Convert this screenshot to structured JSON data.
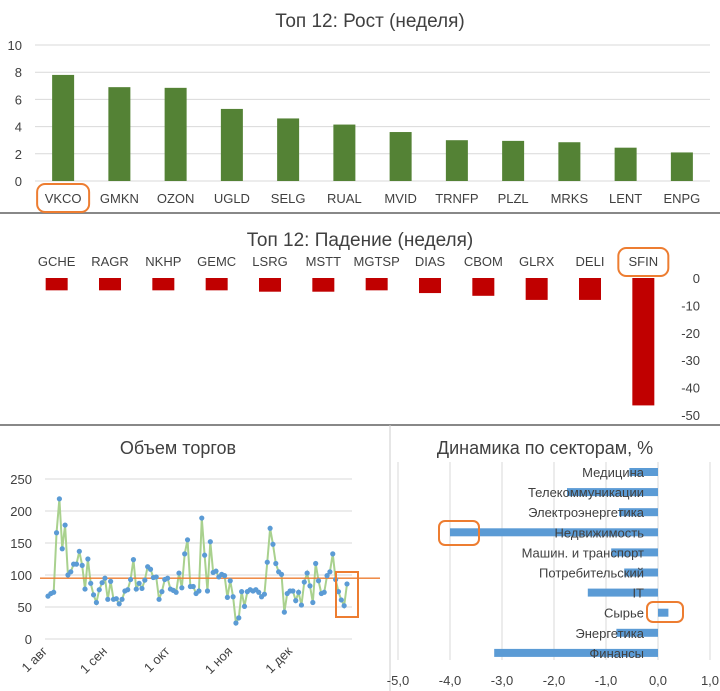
{
  "chart_data": [
    {
      "type": "bar",
      "title": "Топ 12: Рост (неделя)",
      "categories": [
        "VKCO",
        "GMKN",
        "OZON",
        "UGLD",
        "SELG",
        "RUAL",
        "MVID",
        "TRNFP",
        "PLZL",
        "MRKS",
        "LENT",
        "ENPG"
      ],
      "values": [
        7.8,
        6.9,
        6.85,
        5.3,
        4.6,
        4.15,
        3.6,
        3.0,
        2.95,
        2.85,
        2.45,
        2.1
      ],
      "ylim": [
        0,
        10
      ],
      "yticks": [
        0,
        2,
        4,
        6,
        8,
        10
      ],
      "highlight": "VKCO",
      "color": "#548235"
    },
    {
      "type": "bar",
      "title": "Топ 12: Падение (неделя)",
      "categories": [
        "GCHE",
        "RAGR",
        "NKHP",
        "GEMC",
        "LSRG",
        "MSTT",
        "MGTSP",
        "DIAS",
        "CBOM",
        "GLRX",
        "DELI",
        "SFIN"
      ],
      "values": [
        -4.5,
        -4.5,
        -4.5,
        -4.5,
        -5,
        -5,
        -4.5,
        -5.5,
        -6.5,
        -8,
        -8,
        -46.5
      ],
      "ylim": [
        -50,
        0
      ],
      "yticks": [
        0,
        -10,
        -20,
        -30,
        -40,
        -50
      ],
      "highlight": "SFIN",
      "color": "#c00000"
    },
    {
      "type": "line",
      "title": "Объем торгов",
      "xticks": [
        "1 авг",
        "1 сен",
        "1 окт",
        "1 ноя",
        "1 дек"
      ],
      "ylim": [
        0,
        250
      ],
      "yticks": [
        0,
        50,
        100,
        150,
        200,
        250
      ],
      "average": 95,
      "values": [
        67,
        71,
        73,
        166,
        219,
        141,
        178,
        100,
        105,
        117,
        117,
        137,
        115,
        78,
        125,
        87,
        69,
        57,
        77,
        88,
        95,
        62,
        90,
        62,
        63,
        55,
        62,
        75,
        77,
        93,
        124,
        78,
        87,
        79,
        92,
        113,
        109,
        96,
        97,
        62,
        74,
        93,
        95,
        78,
        76,
        73,
        103,
        80,
        133,
        155,
        82,
        82,
        71,
        75,
        189,
        131,
        75,
        152,
        104,
        106,
        97,
        101,
        99,
        65,
        91,
        66,
        25,
        33,
        74,
        51,
        74,
        77,
        75,
        77,
        73,
        66,
        70,
        120,
        173,
        148,
        118,
        105,
        101,
        42,
        71,
        75,
        75,
        60,
        73,
        53,
        89,
        103,
        83,
        57,
        118,
        91,
        71,
        73,
        99,
        105,
        133,
        93,
        74,
        61,
        52,
        86
      ],
      "line_color": "#a9d18e",
      "point_color": "#5b9bd5",
      "avg_color": "#ed7d31"
    },
    {
      "type": "bar",
      "orientation": "horizontal",
      "title": "Динамика по секторам, %",
      "categories": [
        "Медицина",
        "Телекоммуникации",
        "Электроэнергетика",
        "Недвижимость",
        "Машин. и транспорт",
        "Потребительский",
        "IT",
        "Сырье",
        "Энергетика",
        "Финансы"
      ],
      "values": [
        -0.55,
        -1.75,
        -0.75,
        -4.0,
        -0.9,
        -0.65,
        -1.35,
        0.2,
        -0.8,
        -3.15
      ],
      "xlim": [
        -5,
        1
      ],
      "xticks": [
        "-5,0",
        "-4,0",
        "-3,0",
        "-2,0",
        "-1,0",
        "0,0",
        "1,0"
      ],
      "highlight": [
        "Недвижимость",
        "Сырье"
      ],
      "color": "#5b9bd5"
    }
  ]
}
